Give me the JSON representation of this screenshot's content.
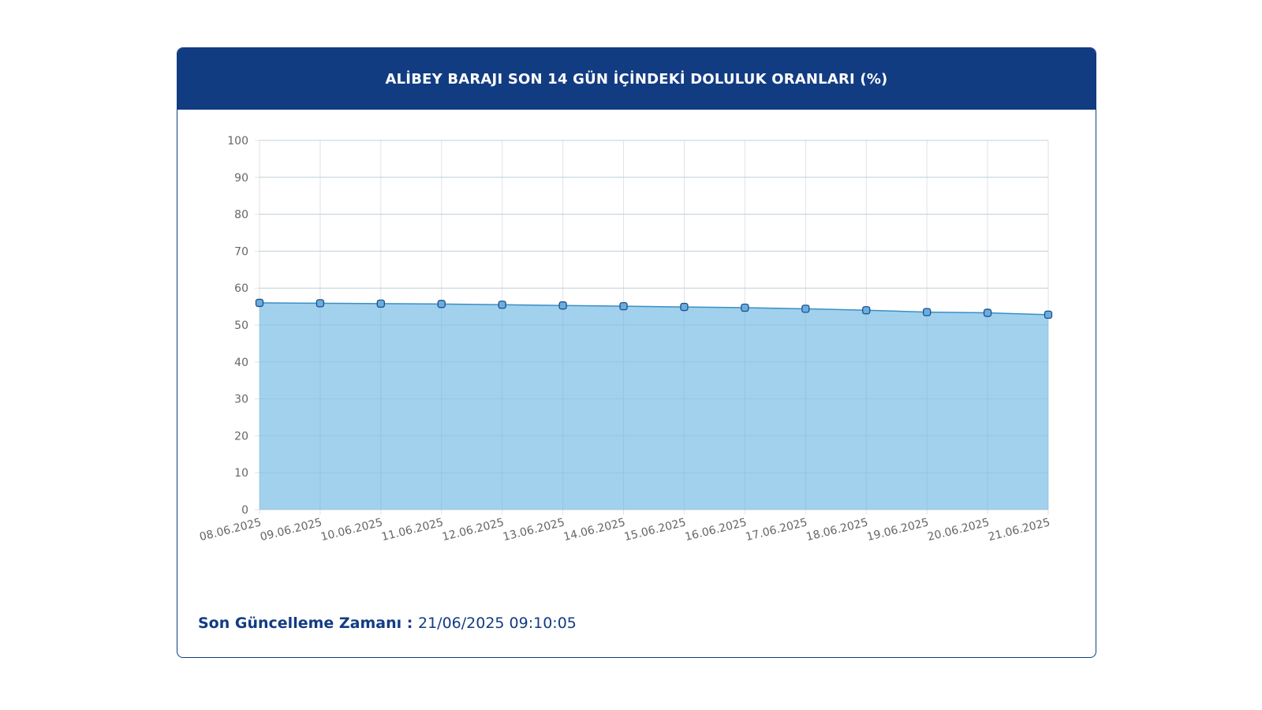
{
  "header": {
    "title": "ALİBEY BARAJI SON 14 GÜN İÇİNDEKİ DOLULUK ORANLARI (%)"
  },
  "footer": {
    "label": "Son Güncelleme Zamanı",
    "separator": " : ",
    "value": "21/06/2025 09:10:05"
  },
  "colors": {
    "header_bg": "#123c82",
    "area_fill": "#9ccfec",
    "line": "#3a8fc6",
    "grid": "#e2e2e2",
    "marker_stroke": "#1e4f8a",
    "text_axis": "#666666"
  },
  "chart_data": {
    "type": "area",
    "title": "ALİBEY BARAJI SON 14 GÜN İÇİNDEKİ DOLULUK ORANLARI (%)",
    "xlabel": "",
    "ylabel": "",
    "categories": [
      "08.06.2025",
      "09.06.2025",
      "10.06.2025",
      "11.06.2025",
      "12.06.2025",
      "13.06.2025",
      "14.06.2025",
      "15.06.2025",
      "16.06.2025",
      "17.06.2025",
      "18.06.2025",
      "19.06.2025",
      "20.06.2025",
      "21.06.2025"
    ],
    "values": [
      56.0,
      55.9,
      55.8,
      55.7,
      55.5,
      55.3,
      55.1,
      54.9,
      54.7,
      54.4,
      54.0,
      53.5,
      53.3,
      52.8
    ],
    "ylim": [
      0,
      100
    ],
    "yticks": [
      0,
      10,
      20,
      30,
      40,
      50,
      60,
      70,
      80,
      90,
      100
    ],
    "grid": true,
    "legend": "none"
  }
}
